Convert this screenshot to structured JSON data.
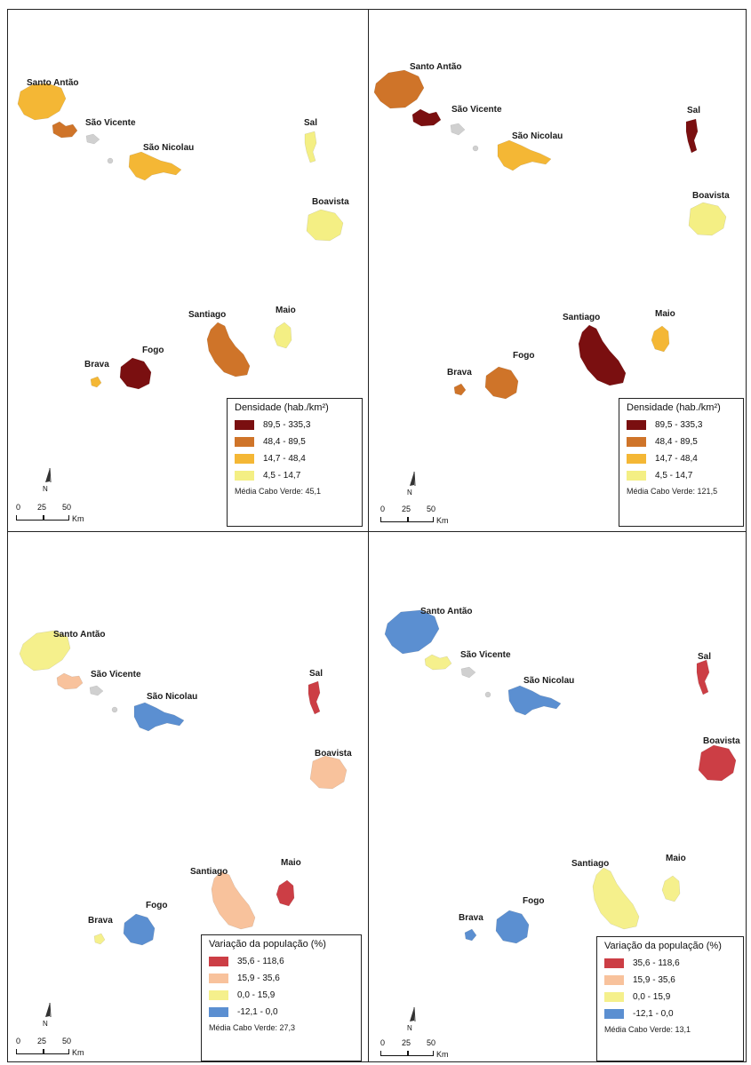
{
  "islands": {
    "santo_antao": "Santo Antão",
    "sao_vicente": "São Vicente",
    "sao_nicolau": "São Nicolau",
    "sal": "Sal",
    "boavista": "Boavista",
    "santiago": "Santiago",
    "maio": "Maio",
    "fogo": "Fogo",
    "brava": "Brava"
  },
  "scale": {
    "n0": "0",
    "n1": "25",
    "n2": "50",
    "unit": "Km"
  },
  "north_label": "N",
  "colors": {
    "dens_4": "#7a0f10",
    "dens_3": "#cf7429",
    "dens_2": "#f4b735",
    "dens_1": "#f4ef84",
    "var_4": "#cc3e45",
    "var_3": "#f8c29c",
    "var_2": "#f5f08c",
    "var_1": "#5b8fd1",
    "grey": "#d0d0d0"
  },
  "panels": [
    {
      "legend_title": "Densidade (hab./km²)",
      "classes": [
        {
          "range": "89,5 - 335,3",
          "color": "#7a0f10"
        },
        {
          "range": "48,4 - 89,5",
          "color": "#cf7429"
        },
        {
          "range": "14,7 - 48,4",
          "color": "#f4b735"
        },
        {
          "range": "4,5 - 14,7",
          "color": "#f4ef84"
        }
      ],
      "mean": "Média Cabo Verde: 45,1",
      "island_classes": {
        "santo_antao": "dens_2",
        "sao_vicente": "dens_3",
        "sao_nicolau": "dens_2",
        "sal": "dens_1",
        "boavista": "dens_1",
        "santiago": "dens_3",
        "maio": "dens_1",
        "fogo": "dens_4",
        "brava": "dens_2"
      }
    },
    {
      "legend_title": "Densidade (hab./km²)",
      "classes": [
        {
          "range": "89,5 - 335,3",
          "color": "#7a0f10"
        },
        {
          "range": "48,4 - 89,5",
          "color": "#cf7429"
        },
        {
          "range": "14,7 - 48,4",
          "color": "#f4b735"
        },
        {
          "range": "4,5 - 14,7",
          "color": "#f4ef84"
        }
      ],
      "mean": "Média Cabo Verde: 121,5",
      "island_classes": {
        "santo_antao": "dens_3",
        "sao_vicente": "dens_4",
        "sao_nicolau": "dens_2",
        "sal": "dens_4",
        "boavista": "dens_1",
        "santiago": "dens_4",
        "maio": "dens_2",
        "fogo": "dens_3",
        "brava": "dens_3"
      }
    },
    {
      "legend_title": "Variação da população (%)",
      "classes": [
        {
          "range": "35,6 - 118,6",
          "color": "#cc3e45"
        },
        {
          "range": "15,9 - 35,6",
          "color": "#f8c29c"
        },
        {
          "range": "0,0 - 15,9",
          "color": "#f5f08c"
        },
        {
          "range": "-12,1 - 0,0",
          "color": "#5b8fd1"
        }
      ],
      "mean": "Média Cabo Verde: 27,3",
      "island_classes": {
        "santo_antao": "var_2",
        "sao_vicente": "var_3",
        "sao_nicolau": "var_1",
        "sal": "var_4",
        "boavista": "var_3",
        "santiago": "var_3",
        "maio": "var_4",
        "fogo": "var_1",
        "brava": "var_2"
      }
    },
    {
      "legend_title": "Variação da população (%)",
      "classes": [
        {
          "range": "35,6 - 118,6",
          "color": "#cc3e45"
        },
        {
          "range": "15,9 - 35,6",
          "color": "#f8c29c"
        },
        {
          "range": "0,0 - 15,9",
          "color": "#f5f08c"
        },
        {
          "range": "-12,1 - 0,0",
          "color": "#5b8fd1"
        }
      ],
      "mean": "Média Cabo Verde: 13,1",
      "island_classes": {
        "santo_antao": "var_1",
        "sao_vicente": "var_2",
        "sao_nicolau": "var_1",
        "sal": "var_4",
        "boavista": "var_4",
        "santiago": "var_2",
        "maio": "var_2",
        "fogo": "var_1",
        "brava": "var_1"
      }
    }
  ]
}
